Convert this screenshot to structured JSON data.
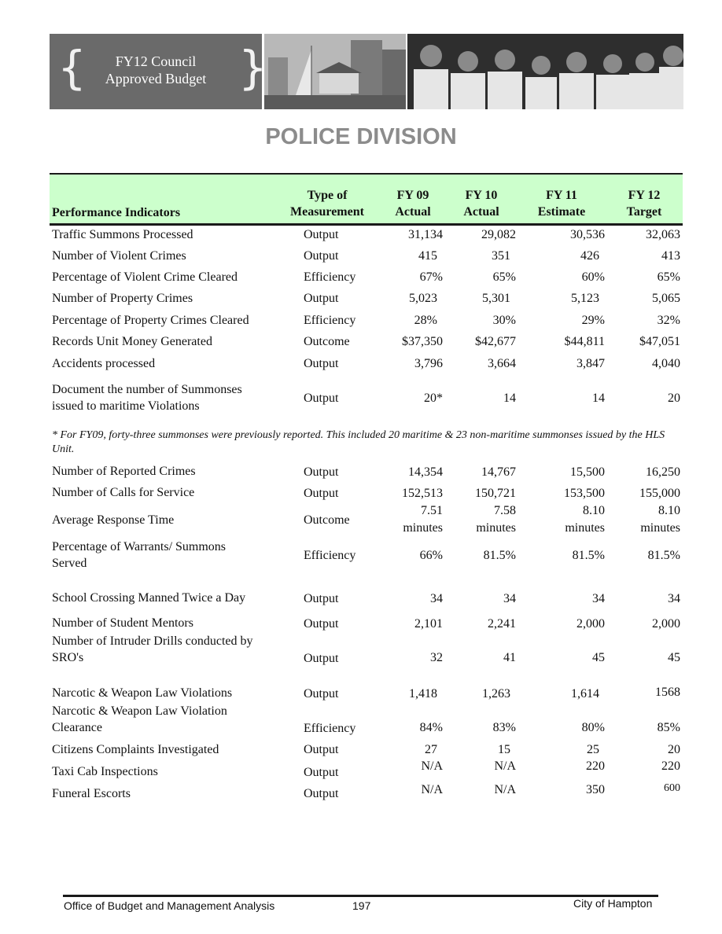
{
  "header": {
    "badge_title_line1": "FY12 Council",
    "badge_title_line2": "Approved Budget",
    "brace_left": "{",
    "brace_right": "}"
  },
  "page_title": "POLICE DIVISION",
  "table": {
    "columns": {
      "indicator": "Performance Indicators",
      "type_l1": "Type of",
      "type_l2": "Measurement",
      "fy09_l1": "FY 09",
      "fy09_l2": "Actual",
      "fy10_l1": "FY 10",
      "fy10_l2": "Actual",
      "fy11_l1": "FY 11",
      "fy11_l2": "Estimate",
      "fy12_l1": "FY 12",
      "fy12_l2": "Target"
    },
    "rows": [
      {
        "indicator": "Traffic Summons Processed",
        "type": "Output",
        "fy09": "31,134",
        "fy10": "29,082",
        "fy11": "30,536",
        "fy12": "32,063"
      },
      {
        "indicator": "Number of Violent Crimes",
        "type": "Output",
        "fy09": "415",
        "fy10": "351",
        "fy11": "426",
        "fy12": "413"
      },
      {
        "indicator": "Percentage of Violent Crime Cleared",
        "type": "Efficiency",
        "fy09": "67%",
        "fy10": "65%",
        "fy11": "60%",
        "fy12": "65%"
      },
      {
        "indicator": "Number of Property Crimes",
        "type": "Output",
        "fy09": "5,023",
        "fy10": "5,301",
        "fy11": "5,123",
        "fy12": "5,065"
      },
      {
        "indicator": "Percentage of Property Crimes Cleared",
        "type": "Efficiency",
        "fy09": "28%",
        "fy10": "30%",
        "fy11": "29%",
        "fy12": "32%"
      },
      {
        "indicator": "Records Unit Money Generated",
        "type": "Outcome",
        "fy09": "$37,350",
        "fy10": "$42,677",
        "fy11": "$44,811",
        "fy12": "$47,051"
      },
      {
        "indicator": "Accidents processed",
        "type": "Output",
        "fy09": "3,796",
        "fy10": "3,664",
        "fy11": "3,847",
        "fy12": "4,040"
      },
      {
        "indicator_l1": "Document the number of Summonses",
        "indicator_l2": "issued to maritime Violations",
        "type": "Output",
        "fy09": "20*",
        "fy10": "14",
        "fy11": "14",
        "fy12": "20"
      },
      {
        "indicator": "Number of Reported Crimes",
        "type": "Output",
        "fy09": "14,354",
        "fy10": "14,767",
        "fy11": "15,500",
        "fy12": "16,250"
      },
      {
        "indicator": "Number of Calls for Service",
        "type": "Output",
        "fy09": "152,513",
        "fy10": "150,721",
        "fy11": "153,500",
        "fy12": "155,000"
      },
      {
        "indicator": "Average Response Time",
        "type": "Outcome",
        "fy09": "7.51",
        "fy10": "7.58",
        "fy11": "8.10",
        "fy12": "8.10",
        "unit": "minutes"
      },
      {
        "indicator_l1": "Percentage of Warrants/ Summons",
        "indicator_l2": "Served",
        "type": "Efficiency",
        "fy09": "66%",
        "fy10": "81.5%",
        "fy11": "81.5%",
        "fy12": "81.5%"
      },
      {
        "indicator": "School Crossing Manned Twice a Day",
        "type": "Output",
        "fy09": "34",
        "fy10": "34",
        "fy11": "34",
        "fy12": "34"
      },
      {
        "indicator": "Number of Student Mentors",
        "type": "Output",
        "fy09": "2,101",
        "fy10": "2,241",
        "fy11": "2,000",
        "fy12": "2,000"
      },
      {
        "indicator_l1": "Number of Intruder Drills conducted by",
        "indicator_l2": "SRO's",
        "type": "Output",
        "fy09": "32",
        "fy10": "41",
        "fy11": "45",
        "fy12": "45"
      },
      {
        "indicator": "Narcotic & Weapon Law Violations",
        "type": "Output",
        "fy09": "1,418",
        "fy10": "1,263",
        "fy11": "1,614",
        "fy12": "1568"
      },
      {
        "indicator_l1": "Narcotic & Weapon Law Violation",
        "indicator_l2": "Clearance",
        "type": "Efficiency",
        "fy09": "84%",
        "fy10": "83%",
        "fy11": "80%",
        "fy12": "85%"
      },
      {
        "indicator": "Citizens Complaints Investigated",
        "type": "Output",
        "fy09": "27",
        "fy10": "15",
        "fy11": "25",
        "fy12": "20"
      },
      {
        "indicator": "Taxi Cab Inspections",
        "type": "Output",
        "fy09": "N/A",
        "fy10": "N/A",
        "fy11": "220",
        "fy12": "220"
      },
      {
        "indicator": "Funeral Escorts",
        "type": "Output",
        "fy09": "N/A",
        "fy10": "N/A",
        "fy11": "350",
        "fy12": "600"
      }
    ],
    "footnote": "* For FY09, forty-three summonses were previously reported. This included 20 maritime & 23 non-maritime summonses issued by the HLS Unit."
  },
  "footer": {
    "left": "Office of Budget and Management Analysis",
    "page_number": "197",
    "right": "City of Hampton"
  },
  "colors": {
    "header_band": "#ccffcc",
    "title_gray": "#8c8c8c",
    "badge_gray": "#6a6a6a"
  }
}
